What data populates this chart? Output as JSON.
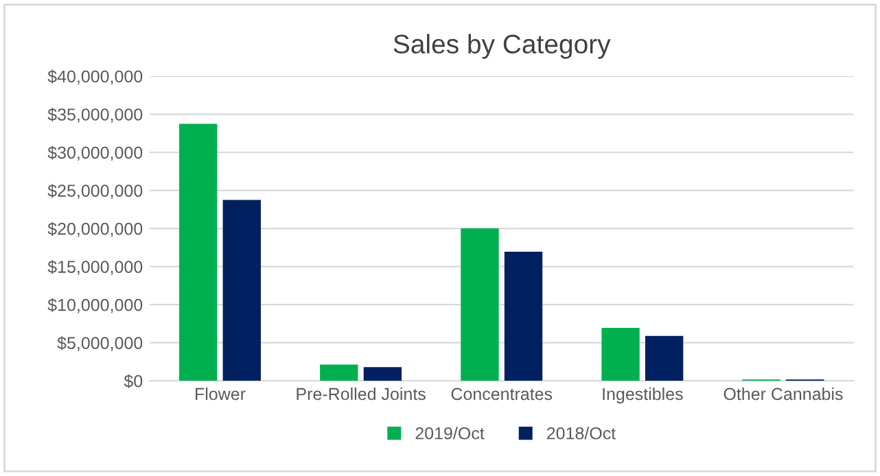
{
  "chart_data": {
    "type": "bar",
    "title": "Sales by Category",
    "categories": [
      "Flower",
      "Pre-Rolled Joints",
      "Concentrates",
      "Ingestibles",
      "Other Cannabis"
    ],
    "series": [
      {
        "name": "2019/Oct",
        "color": "#00b050",
        "values": [
          33750000,
          2140000,
          20000000,
          6960000,
          180000
        ]
      },
      {
        "name": "2018/Oct",
        "color": "#002060",
        "values": [
          23750000,
          1790000,
          16960000,
          5890000,
          180000
        ]
      }
    ],
    "ylim": [
      0,
      40000000
    ],
    "yticks": [
      {
        "value": 0,
        "label": "$0"
      },
      {
        "value": 5000000,
        "label": "$5,000,000"
      },
      {
        "value": 10000000,
        "label": "$10,000,000"
      },
      {
        "value": 15000000,
        "label": "$15,000,000"
      },
      {
        "value": 20000000,
        "label": "$20,000,000"
      },
      {
        "value": 25000000,
        "label": "$25,000,000"
      },
      {
        "value": 30000000,
        "label": "$30,000,000"
      },
      {
        "value": 35000000,
        "label": "$35,000,000"
      },
      {
        "value": 40000000,
        "label": "$40,000,000"
      }
    ],
    "grid": "y",
    "legend": "bottom"
  }
}
